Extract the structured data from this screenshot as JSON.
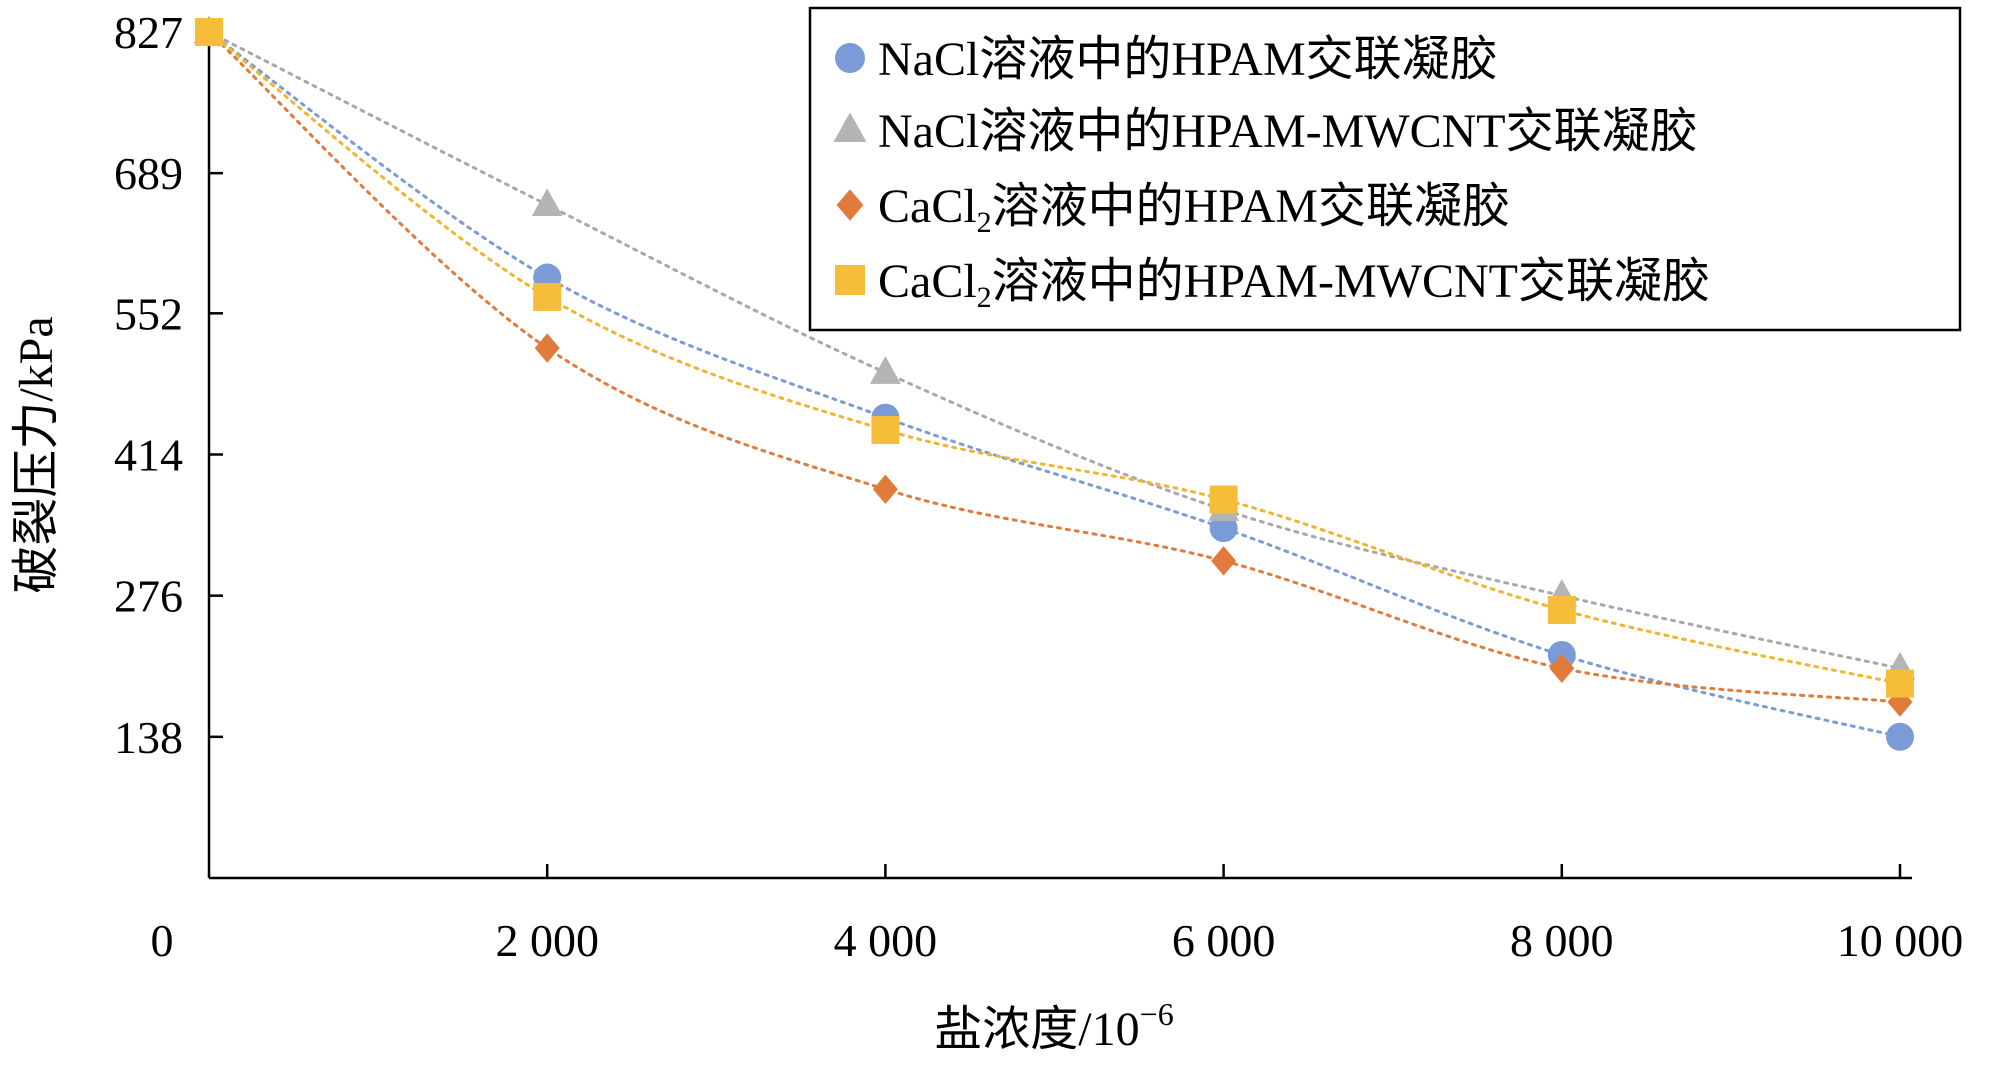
{
  "chart_data": {
    "type": "scatter",
    "title": "",
    "xlabel": "盐浓度/10",
    "xlabel_sup": "−6",
    "ylabel": "破裂压力/kPa",
    "xlim": [
      0,
      10000
    ],
    "ylim": [
      0,
      827
    ],
    "x_ticks": [
      {
        "value": 0,
        "label": "0"
      },
      {
        "value": 2000,
        "label": "2 000"
      },
      {
        "value": 4000,
        "label": "4 000"
      },
      {
        "value": 6000,
        "label": "6 000"
      },
      {
        "value": 8000,
        "label": "8 000"
      },
      {
        "value": 10000,
        "label": "10 000"
      }
    ],
    "y_ticks": [
      {
        "value": 138,
        "label": "138"
      },
      {
        "value": 276,
        "label": "276"
      },
      {
        "value": 414,
        "label": "414"
      },
      {
        "value": 552,
        "label": "552"
      },
      {
        "value": 689,
        "label": "689"
      },
      {
        "value": 827,
        "label": "827"
      }
    ],
    "grid": false,
    "legend_position": "top-right",
    "series": [
      {
        "name": "NaCl溶液中的HPAM交联凝胶",
        "legend_prefix": "NaCl溶液中的HPAM交联凝胶",
        "legend_sub": "",
        "legend_suffix": "",
        "marker": "circle",
        "color": "#7b9bd6",
        "trend_color": "#7b9bd6",
        "x": [
          0,
          2000,
          4000,
          6000,
          8000,
          10000
        ],
        "y": [
          827,
          587,
          450,
          342,
          218,
          138
        ]
      },
      {
        "name": "NaCl溶液中的HPAM-MWCNT交联凝胶",
        "legend_prefix": "NaCl溶液中的HPAM-MWCNT交联凝胶",
        "legend_sub": "",
        "legend_suffix": "",
        "marker": "triangle",
        "color": "#b4b4b4",
        "trend_color": "#a8a8a8",
        "x": [
          0,
          2000,
          4000,
          6000,
          8000,
          10000
        ],
        "y": [
          827,
          658,
          494,
          360,
          276,
          205
        ]
      },
      {
        "name": "CaCl2溶液中的HPAM交联凝胶",
        "legend_prefix": "CaCl",
        "legend_sub": "2",
        "legend_suffix": "溶液中的HPAM交联凝胶",
        "marker": "diamond",
        "color": "#e07b3c",
        "trend_color": "#e07b3c",
        "x": [
          0,
          2000,
          4000,
          6000,
          8000,
          10000
        ],
        "y": [
          827,
          518,
          380,
          310,
          205,
          172
        ]
      },
      {
        "name": "CaCl2溶液中的HPAM-MWCNT交联凝胶",
        "legend_prefix": "CaCl",
        "legend_sub": "2",
        "legend_suffix": "溶液中的HPAM-MWCNT交联凝胶",
        "marker": "square",
        "color": "#f5bd3a",
        "trend_color": "#f0b52e",
        "x": [
          0,
          2000,
          4000,
          6000,
          8000,
          10000
        ],
        "y": [
          827,
          568,
          438,
          370,
          262,
          190
        ]
      }
    ]
  }
}
